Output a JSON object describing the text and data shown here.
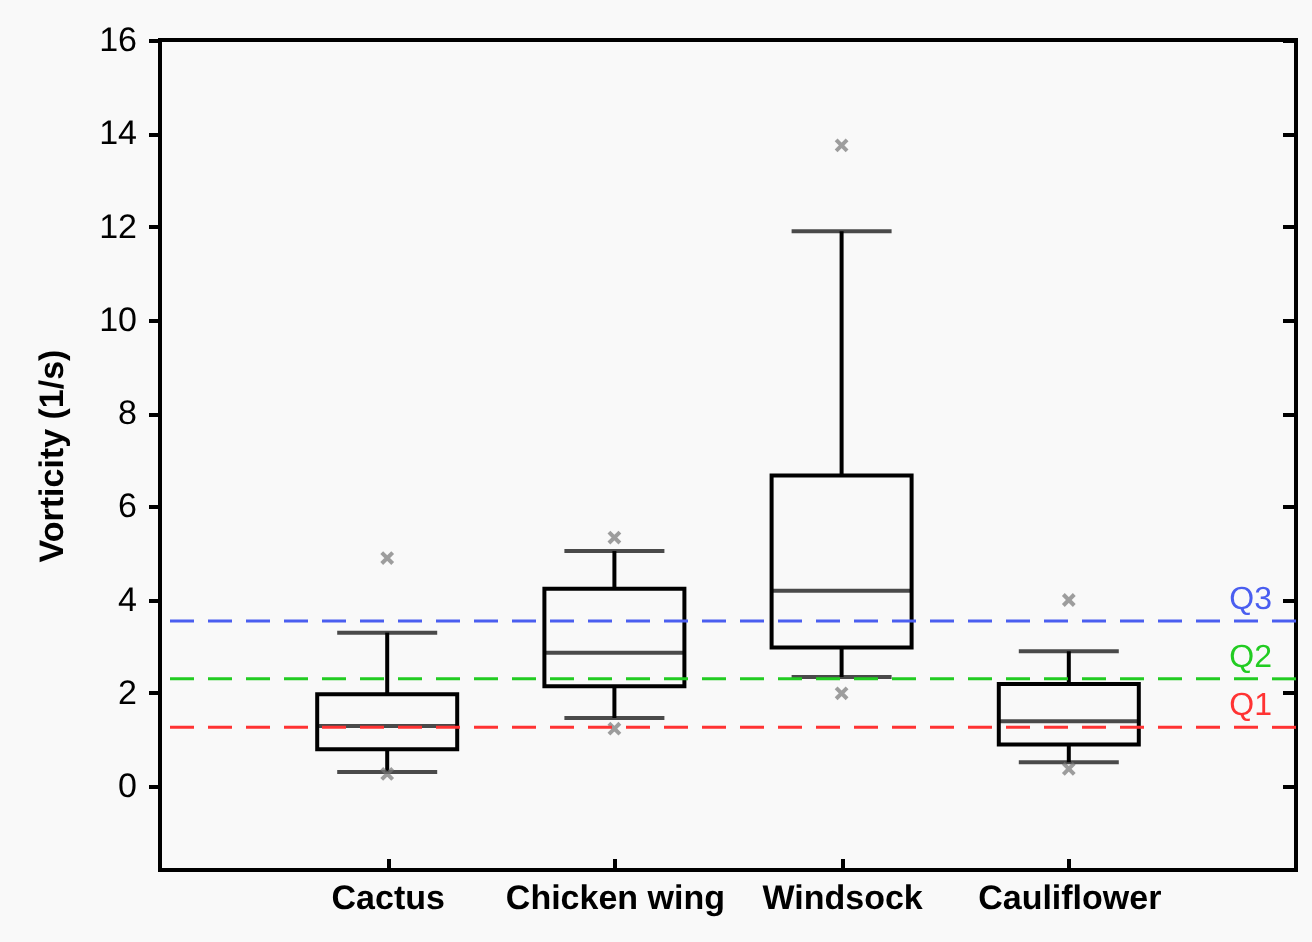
{
  "chart_data": {
    "type": "box",
    "ylabel": "Vorticity (1/s)",
    "categories": [
      "Cactus",
      "Chicken wing",
      "Windsock",
      "Cauliflower"
    ],
    "boxes": [
      {
        "low": 0.3,
        "q1": 0.79,
        "median": 1.29,
        "q3": 1.97,
        "high": 3.29,
        "outliers": [
          4.89,
          0.26
        ]
      },
      {
        "low": 1.46,
        "q1": 2.14,
        "median": 2.86,
        "q3": 4.23,
        "high": 5.04,
        "outliers": [
          5.33,
          1.23
        ]
      },
      {
        "low": 2.34,
        "q1": 2.97,
        "median": 4.19,
        "q3": 6.66,
        "high": 11.9,
        "outliers": [
          13.74,
          1.99
        ]
      },
      {
        "low": 0.51,
        "q1": 0.89,
        "median": 1.39,
        "q3": 2.19,
        "high": 2.89,
        "outliers": [
          3.99,
          0.37
        ]
      }
    ],
    "ylim": [
      -1.8,
      16
    ],
    "yticks": [
      0,
      2,
      4,
      6,
      8,
      10,
      12,
      14,
      16
    ],
    "ref_lines": [
      {
        "axis": "y",
        "value": 3.54,
        "label": "Q3",
        "color": "#4a5ef0",
        "line_style": "dashed"
      },
      {
        "axis": "y",
        "value": 2.3,
        "label": "Q2",
        "color": "#22cc22",
        "line_style": "dashed"
      },
      {
        "axis": "y",
        "value": 1.26,
        "label": "Q1",
        "color": "#ff3333",
        "line_style": "dashed"
      }
    ],
    "grid": false
  }
}
